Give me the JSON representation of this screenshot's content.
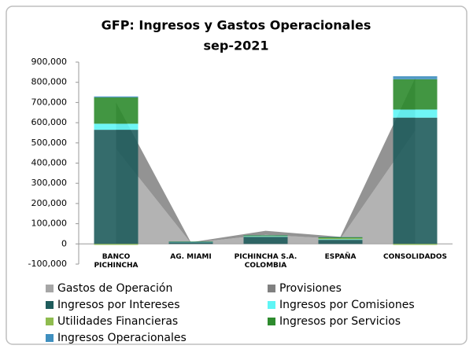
{
  "chart_data": {
    "type": "combo",
    "title": "GFP: Ingresos y Gastos Operacionales",
    "subtitle": "sep-2021",
    "categories": [
      "BANCO PICHINCHA",
      "AG. MIAMI",
      "PICHINCHA S.A. COLOMBIA",
      "ESPAÑA",
      "CONSOLIDADOS"
    ],
    "series": [
      {
        "name": "Gastos de Operación",
        "type": "area",
        "color": "#a6a6a6",
        "values": [
          470000,
          5000,
          45000,
          25000,
          560000
        ]
      },
      {
        "name": "Provisiones",
        "type": "area",
        "color": "#808080",
        "values": [
          230000,
          3000,
          20000,
          10000,
          260000
        ]
      },
      {
        "name": "Ingresos por Intereses",
        "type": "bar",
        "color": "#1f5c5c",
        "values": [
          565000,
          8000,
          35000,
          20000,
          625000
        ]
      },
      {
        "name": "Ingresos por Comisiones",
        "type": "bar",
        "color": "#5ff5f5",
        "values": [
          30000,
          1000,
          3000,
          3000,
          40000
        ]
      },
      {
        "name": "Utilidades Financieras",
        "type": "bar",
        "color": "#8fbc4f",
        "values": [
          -5000,
          0,
          2000,
          5000,
          -5000
        ]
      },
      {
        "name": "Ingresos por Servicios",
        "type": "bar",
        "color": "#2e8b2e",
        "values": [
          130000,
          2000,
          2000,
          5000,
          150000
        ]
      },
      {
        "name": "Ingresos Operacionales",
        "type": "bar",
        "color": "#3f8fbf",
        "values": [
          5000,
          1000,
          1000,
          1000,
          15000
        ]
      }
    ],
    "ylim": [
      -100000,
      900000
    ],
    "yticks": [
      {
        "value": -100000,
        "label": "-100,000"
      },
      0,
      {
        "value": 100000,
        "label": "100,000"
      },
      {
        "value": 200000,
        "label": "200,000"
      },
      {
        "value": 300000,
        "label": "300,000"
      },
      {
        "value": 400000,
        "label": "400,000"
      },
      {
        "value": 500000,
        "label": "500,000"
      },
      {
        "value": 600000,
        "label": "600,000"
      },
      {
        "value": 700000,
        "label": "700,000"
      },
      {
        "value": 800000,
        "label": "800,000"
      },
      {
        "value": 900000,
        "label": "900,000"
      }
    ]
  }
}
